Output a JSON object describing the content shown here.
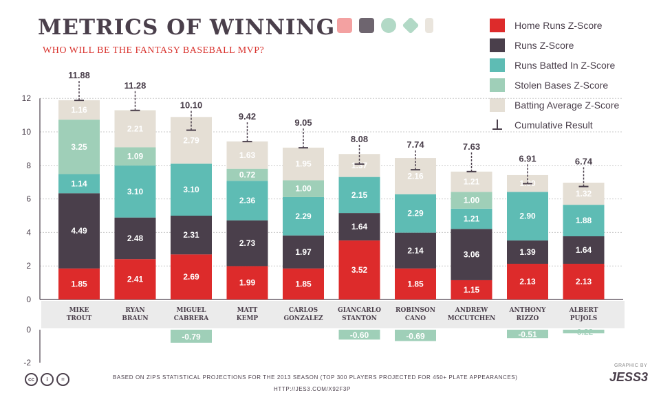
{
  "title": "METRICS OF WINNING",
  "subtitle": "WHO WILL BE THE FANTASY BASEBALL MVP?",
  "icons": [
    "baseball-field-icon",
    "home-plate-icon",
    "bat-icon",
    "diamond-icon",
    "batter-icon"
  ],
  "colors": {
    "home_runs": "#dd2b2b",
    "runs": "#4a3f4b",
    "rbi": "#5ebcb4",
    "stolen_bases": "#9fcfb8",
    "batting_average": "#e5dfd5",
    "axis_band": "#ebebeb"
  },
  "legend": [
    {
      "label": "Home Runs Z-Score",
      "color": "#dd2b2b"
    },
    {
      "label": "Runs Z-Score",
      "color": "#4a3f4b"
    },
    {
      "label": "Runs Batted In Z-Score",
      "color": "#5ebcb4"
    },
    {
      "label": "Stolen Bases Z-Score",
      "color": "#9fcfb8"
    },
    {
      "label": "Batting Average Z-Score",
      "color": "#e5dfd5"
    },
    {
      "label": "Cumulative Result",
      "color": "#4a3f4b"
    }
  ],
  "chart_data": {
    "type": "bar",
    "stacked": true,
    "categories": [
      "MIKE TROUT",
      "RYAN BRAUN",
      "MIGUEL CABRERA",
      "MATT KEMP",
      "CARLOS GONZALEZ",
      "GIANCARLO STANTON",
      "ROBINSON CANO",
      "ANDREW MCCUTCHEN",
      "ANTHONY RIZZO",
      "ALBERT PUJOLS"
    ],
    "series": [
      {
        "name": "Home Runs Z-Score",
        "values": [
          1.85,
          2.41,
          2.69,
          1.99,
          1.85,
          3.52,
          1.85,
          1.15,
          2.13,
          2.13
        ]
      },
      {
        "name": "Runs Z-Score",
        "values": [
          4.49,
          2.48,
          2.31,
          2.73,
          1.97,
          1.64,
          2.14,
          3.06,
          1.39,
          1.64
        ]
      },
      {
        "name": "Runs Batted In Z-Score",
        "values": [
          1.14,
          3.1,
          3.1,
          2.36,
          2.29,
          2.15,
          2.29,
          1.21,
          2.9,
          1.88
        ]
      },
      {
        "name": "Stolen Bases Z-Score",
        "values": [
          3.25,
          1.09,
          -0.79,
          0.72,
          1.0,
          -0.6,
          -0.69,
          1.0,
          -0.51,
          -0.22
        ]
      },
      {
        "name": "Batting Average Z-Score",
        "values": [
          1.16,
          2.21,
          2.79,
          1.63,
          1.95,
          1.37,
          2.16,
          1.21,
          1.0,
          1.32
        ]
      }
    ],
    "cumulative": [
      11.88,
      11.28,
      10.1,
      9.42,
      9.05,
      8.08,
      7.74,
      7.63,
      6.91,
      6.74
    ],
    "yticks_top": [
      0,
      2,
      4,
      6,
      8,
      10,
      12
    ],
    "yticks_bottom": [
      0,
      -2
    ],
    "ylim": [
      0,
      12
    ],
    "ylim_negative": [
      -2,
      0
    ]
  },
  "footer": "BASED ON ZIPS STATISTICAL PROJECTIONS FOR THE 2013 SEASON  (TOP 300 PLAYERS PROJECTED FOR 450+ PLATE APPEARANCES)",
  "footer_url": "HTTP://JES3.COM/X92F3P",
  "credit_small": "GRAPHIC BY",
  "credit_logo": "JESS3",
  "license_icons": [
    "cc",
    "by",
    "nd"
  ]
}
